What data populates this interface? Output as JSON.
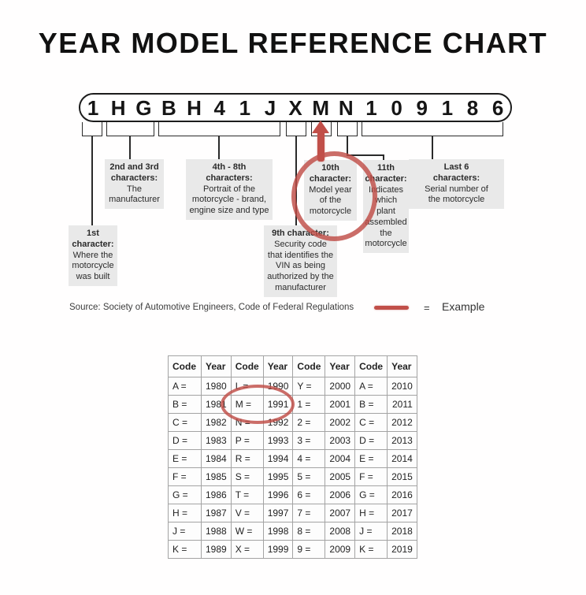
{
  "title": "YEAR MODEL REFERENCE CHART",
  "vin": {
    "characters": [
      "1",
      "H",
      "G",
      "B",
      "H",
      "4",
      "1",
      "J",
      "X",
      "M",
      "N",
      "1",
      "0",
      "9",
      "1",
      "8",
      "6"
    ]
  },
  "callouts": {
    "first": {
      "heading": "1st\ncharacter:",
      "body": "Where the\nmotorcycle\nwas built"
    },
    "second_third": {
      "heading": "2nd and 3rd\ncharacters:",
      "body": "The\nmanufacturer"
    },
    "fourth_eighth": {
      "heading": "4th - 8th\ncharacters:",
      "body": "Portrait of the\nmotorcycle - brand,\nengine size and type"
    },
    "ninth": {
      "heading": "9th character:",
      "body": "Security code\nthat identifies the\nVIN as being\nauthorized by the\nmanufacturer"
    },
    "tenth": {
      "heading": "10th\ncharacter:",
      "body": "Model year\nof the\nmotorcycle"
    },
    "eleventh": {
      "heading": "11th\ncharacter:",
      "body": "Indicates\nwhich plant\nassembled\nthe\nmotorcycle"
    },
    "last_six": {
      "heading": "Last 6\ncharacters:",
      "body": "Serial number of\nthe motorcycle"
    }
  },
  "source": {
    "label": "Source:  Society of Automotive Engineers, Code of Federal Regulations",
    "equals": "=",
    "example_label": "Example"
  },
  "table": {
    "headers": [
      "Code",
      "Year",
      "Code",
      "Year",
      "Code",
      "Year",
      "Code",
      "Year"
    ],
    "rows": [
      [
        "A =",
        "1980",
        "L =",
        "1990",
        "Y =",
        "2000",
        "A =",
        "2010"
      ],
      [
        "B =",
        "1981",
        "M =",
        "1991",
        "1 =",
        "2001",
        "B =",
        "2011"
      ],
      [
        "C =",
        "1982",
        "N =",
        "1992",
        "2 =",
        "2002",
        "C =",
        "2012"
      ],
      [
        "D =",
        "1983",
        "P =",
        "1993",
        "3 =",
        "2003",
        "D =",
        "2013"
      ],
      [
        "E =",
        "1984",
        "R =",
        "1994",
        "4 =",
        "2004",
        "E =",
        "2014"
      ],
      [
        "F =",
        "1985",
        "S =",
        "1995",
        "5 =",
        "2005",
        "F =",
        "2015"
      ],
      [
        "G =",
        "1986",
        "T =",
        "1996",
        "6 =",
        "2006",
        "G =",
        "2016"
      ],
      [
        "H =",
        "1987",
        "V =",
        "1997",
        "7 =",
        "2007",
        "H =",
        "2017"
      ],
      [
        "J =",
        "1988",
        "W =",
        "1998",
        "8 =",
        "2008",
        "J =",
        "2018"
      ],
      [
        "K =",
        "1989",
        "X =",
        "1999",
        "9 =",
        "2009",
        "K =",
        "2019"
      ]
    ]
  },
  "colors": {
    "accent_red": "#c14f49",
    "box_gray": "#e9e9e9",
    "table_border": "#a3a3a3"
  }
}
